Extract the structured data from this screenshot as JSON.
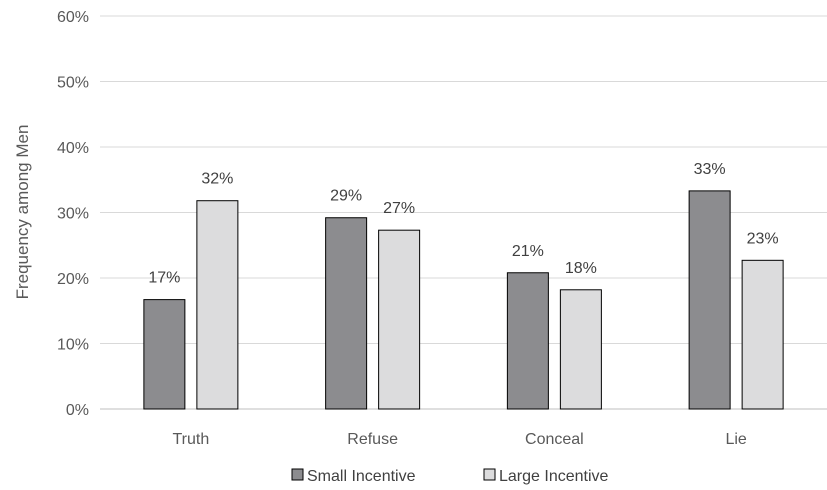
{
  "chart_data": {
    "type": "bar",
    "title": "",
    "xlabel": "",
    "ylabel": "Frequency among Men",
    "categories": [
      "Truth",
      "Refuse",
      "Conceal",
      "Lie"
    ],
    "series": [
      {
        "name": "Small Incentive",
        "values": [
          16.7,
          29.2,
          20.8,
          33.3
        ],
        "labels": [
          "17%",
          "29%",
          "21%",
          "33%"
        ],
        "color": "#8c8c8f"
      },
      {
        "name": "Large Incentive",
        "values": [
          31.8,
          27.3,
          18.2,
          22.7
        ],
        "labels": [
          "32%",
          "27%",
          "18%",
          "23%"
        ],
        "color": "#dcdcdd"
      }
    ],
    "ylim": [
      0,
      60
    ],
    "yticks": [
      "0%",
      "10%",
      "20%",
      "30%",
      "40%",
      "50%",
      "60%"
    ],
    "grid": true,
    "legend": "bottom"
  }
}
